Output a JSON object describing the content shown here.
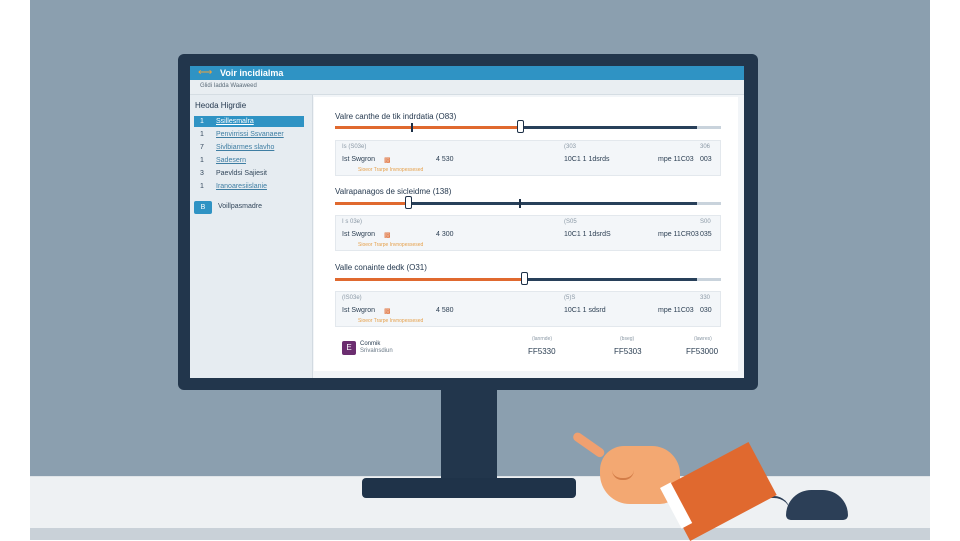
{
  "window": {
    "title": "Voir incidialma",
    "subtitle": "Glidi Iadda Waaweed"
  },
  "sidebar": {
    "title": "Heoda Higrdie",
    "items": [
      {
        "num": "1",
        "label": "Ssillesmalra",
        "active": true
      },
      {
        "num": "1",
        "label": "Penvirrissi Ssvanaeer",
        "active": false
      },
      {
        "num": "7",
        "label": "Sivlbiarmes slavho",
        "active": false
      },
      {
        "num": "1",
        "label": "Sadesern",
        "active": false
      },
      {
        "num": "3",
        "label": "Paevldsi Sajiesit",
        "active": false
      },
      {
        "num": "1",
        "label": "Iranoaresiislanie",
        "active": false
      }
    ],
    "button_icon": "B",
    "button_label": "Voillpasmadre"
  },
  "sections": [
    {
      "title": "Valre canthe de tik indrdatia (O83)",
      "slider_fill": 0.48,
      "ticks": [
        0.2
      ],
      "headers": [
        "Is (S03e)",
        "(303",
        "306"
      ],
      "row": {
        "name": "Ist Swgron",
        "icon": "orders-icon",
        "qty": "4 530",
        "ref": "10C1 1 1dsrds",
        "code": "mpe 11C03",
        "val": "003"
      },
      "note": "Sioeor Trarpe Invnopessesed"
    },
    {
      "title": "Valrapanagos de sicleidme (138)",
      "slider_fill": 0.19,
      "ticks": [
        0.48
      ],
      "headers": [
        "I s 03e)",
        "(S05",
        "S00"
      ],
      "row": {
        "name": "Ist Swgron",
        "icon": "orders-icon",
        "qty": "4 300",
        "ref": "10C1 1 1dsrdS",
        "code": "mpe 11CR03",
        "val": "035"
      },
      "note": "Sioeor Trarpe Invnopessesed"
    },
    {
      "title": "Valle conainte dedk (O31)",
      "slider_fill": 0.49,
      "ticks": [],
      "headers": [
        "(IS03e)",
        "(5)S",
        "330"
      ],
      "row": {
        "name": "Ist Swgron",
        "icon": "orders-icon",
        "qty": "4 580",
        "ref": "10C1 1 sdsrd",
        "code": "mpe 11C03",
        "val": "030"
      },
      "note": "Sioeor Trarpe Invnopessesed"
    }
  ],
  "footer": {
    "logo_text": "E",
    "name": "Conmik",
    "name2": "Srivalnsdiun",
    "totals": [
      {
        "label": "(lanrnde)",
        "value": "FF5330"
      },
      {
        "label": "(bseg)",
        "value": "FF5303"
      },
      {
        "label": "(lawres)",
        "value": "FF53000"
      }
    ]
  },
  "colors": {
    "accent": "#2f93c4",
    "slider_fill": "#e0692f",
    "track": "#28405a",
    "bezel": "#22364c",
    "wall": "#8b9faf"
  }
}
